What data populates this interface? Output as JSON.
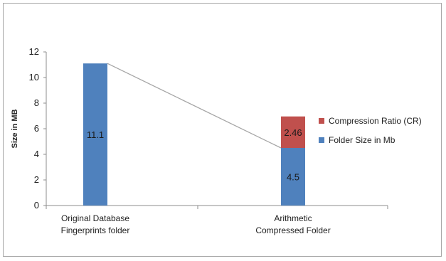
{
  "chart_data": {
    "type": "bar",
    "stacked": true,
    "categories": [
      [
        "Original Database",
        "Fingerprints folder"
      ],
      [
        "Arithmetic",
        "Compressed Folder"
      ]
    ],
    "series": [
      {
        "name": "Folder Size in Mb",
        "values": [
          11.1,
          4.5
        ],
        "labels": [
          "11.1",
          "4.5"
        ],
        "color": "#4f81bd"
      },
      {
        "name": "Compression Ratio (CR)",
        "values": [
          0,
          2.46
        ],
        "labels": [
          "",
          "2.46"
        ],
        "color": "#c0504d"
      }
    ],
    "connector_line": {
      "from_value": 11.1,
      "to_value": 4.5,
      "color": "#a6a6a6"
    },
    "ylabel": "Size in MB",
    "xlabel": "",
    "ylim": [
      0,
      12
    ],
    "yticks": [
      0,
      2,
      4,
      6,
      8,
      10,
      12
    ],
    "grid": false,
    "legend_position": "right"
  }
}
